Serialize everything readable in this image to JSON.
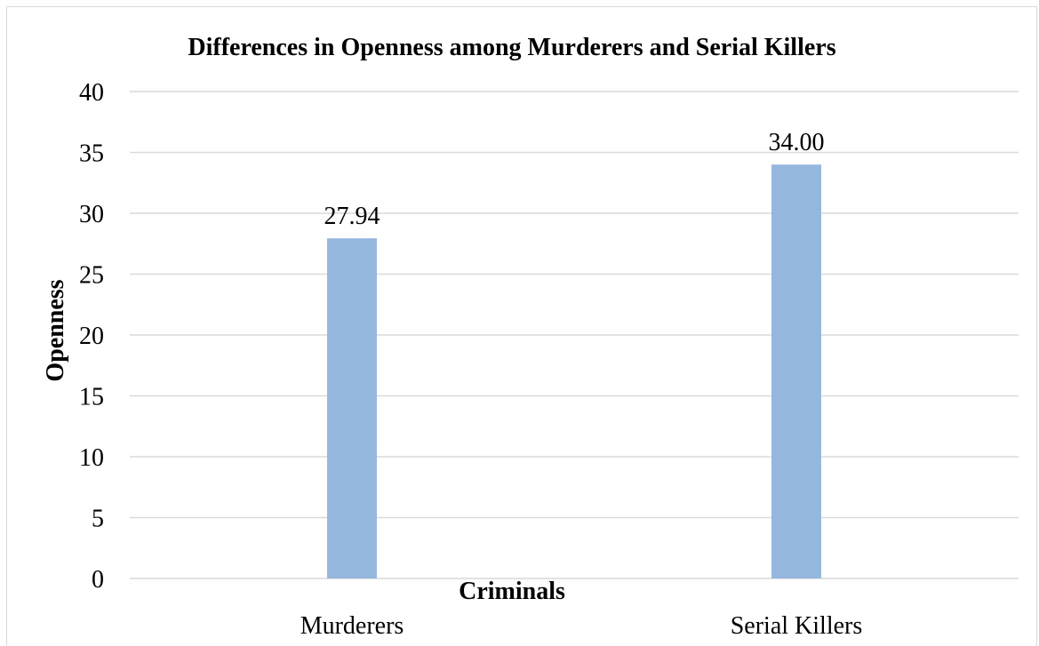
{
  "chart_data": {
    "type": "bar",
    "title": "Differences in Openness among Murderers and Serial Killers",
    "xlabel": "Criminals",
    "ylabel": "Openness",
    "categories": [
      "Murderers",
      "Serial Killers"
    ],
    "values": [
      27.94,
      34.0
    ],
    "value_labels": [
      "27.94",
      "34.00"
    ],
    "ylim": [
      0,
      40
    ],
    "yticks": [
      0,
      5,
      10,
      15,
      20,
      25,
      30,
      35,
      40
    ],
    "grid": true,
    "legend": "none",
    "colors": {
      "bar": "#95b7de",
      "grid": "#d9d9d9",
      "axis": "#d9d9d9"
    }
  }
}
